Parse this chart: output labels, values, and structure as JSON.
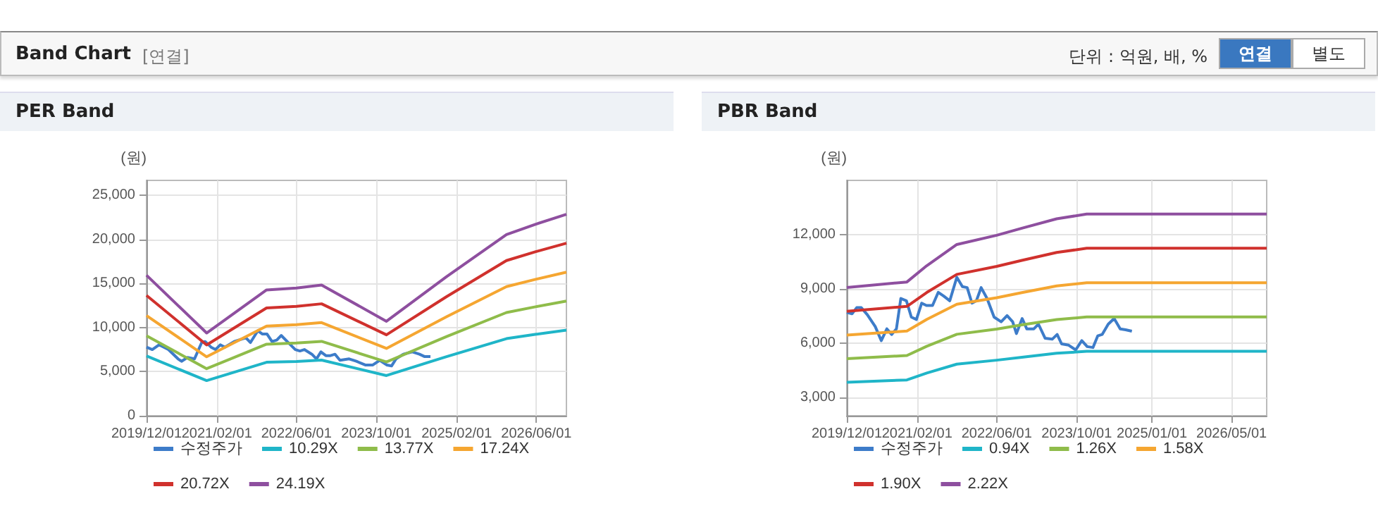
{
  "chart_data": [
    {
      "type": "other",
      "title": "Band Chart",
      "subtitle": "[연결]",
      "annotations": [
        "단위 : 억원, 배, %",
        "연결",
        "별도"
      ]
    },
    {
      "type": "line",
      "title": "PER Band",
      "ylabel": "(원)",
      "xlim": [
        "2019-12-01",
        "2026-12-01"
      ],
      "xticks": [
        {
          "value": "2019-12-01",
          "label": "2019/12/01"
        },
        {
          "value": "2021-02-01",
          "label": "2021/02/01"
        },
        {
          "value": "2022-06-01",
          "label": "2022/06/01"
        },
        {
          "value": "2023-10-01",
          "label": "2023/10/01"
        },
        {
          "value": "2025-02-01",
          "label": "2025/02/01"
        },
        {
          "value": "2026-06-01",
          "label": "2026/06/01"
        }
      ],
      "ylim": [
        0,
        26700
      ],
      "yticks": [
        0,
        {
          "value": 5000,
          "label": "5,000"
        },
        {
          "value": 10000,
          "label": "10,000"
        },
        {
          "value": 15000,
          "label": "15,000"
        },
        {
          "value": 20000,
          "label": "20,000"
        },
        {
          "value": 25000,
          "label": "25,000"
        }
      ],
      "grid": true,
      "legend": "bottom",
      "marker": "none",
      "line_style": "solid",
      "series": [
        {
          "name": "수정주가",
          "color": "#3d7cc9",
          "x": [
            "2019-12-01",
            "2020-01-05",
            "2020-02-15",
            "2020-04-12",
            "2020-06-10",
            "2020-07-01",
            "2020-08-06",
            "2020-09-18",
            "2020-11-01",
            "2020-11-22",
            "2020-12-28",
            "2021-01-24",
            "2021-02-22",
            "2021-03-22",
            "2021-05-18",
            "2021-07-28",
            "2021-08-25",
            "2021-10-09",
            "2021-11-06",
            "2021-12-04",
            "2022-01-03",
            "2022-02-01",
            "2022-02-28",
            "2022-04-12",
            "2022-05-25",
            "2022-06-22",
            "2022-07-19",
            "2022-09-03",
            "2022-10-01",
            "2022-10-28",
            "2022-11-27",
            "2022-12-25",
            "2023-01-22",
            "2023-02-21",
            "2023-04-18",
            "2023-06-01",
            "2023-07-25",
            "2023-09-09",
            "2023-10-21",
            "2023-12-04",
            "2024-01-01",
            "2024-01-28",
            "2024-03-13",
            "2024-05-07",
            "2024-06-19",
            "2024-07-19",
            "2024-08-25"
          ],
          "values": [
            7780,
            7510,
            8050,
            7510,
            6450,
            6180,
            6610,
            6450,
            8310,
            8420,
            7780,
            7510,
            8050,
            7780,
            8420,
            8850,
            8310,
            9650,
            9270,
            9270,
            8420,
            8580,
            9110,
            8310,
            7510,
            7350,
            7510,
            6980,
            6450,
            7250,
            6820,
            6820,
            6980,
            6290,
            6450,
            6180,
            5760,
            5760,
            6290,
            5760,
            5650,
            6450,
            6980,
            7250,
            6980,
            6720,
            6720
          ]
        },
        {
          "name": "10.29X",
          "color": "#1fb5c8",
          "x": [
            "2019-12-01",
            "2020-12-01",
            "2021-12-01",
            "2022-06-01",
            "2022-11-01",
            "2023-12-01",
            "2024-12-01",
            "2025-12-01",
            "2026-06-01",
            "2026-12-01"
          ],
          "values": [
            6780,
            3990,
            6070,
            6160,
            6310,
            4560,
            6710,
            8750,
            9250,
            9720
          ]
        },
        {
          "name": "13.77X",
          "color": "#8fbc4a",
          "x": [
            "2019-12-01",
            "2020-12-01",
            "2021-12-01",
            "2022-06-01",
            "2022-11-01",
            "2023-12-01",
            "2024-12-01",
            "2025-12-01",
            "2026-06-01",
            "2026-12-01"
          ],
          "values": [
            9070,
            5340,
            8120,
            8250,
            8440,
            6100,
            8980,
            11710,
            12380,
            13010
          ]
        },
        {
          "name": "17.24X",
          "color": "#f5a631",
          "x": [
            "2019-12-01",
            "2020-12-01",
            "2021-12-01",
            "2022-06-01",
            "2022-11-01",
            "2023-12-01",
            "2024-12-01",
            "2025-12-01",
            "2026-06-01",
            "2026-12-01"
          ],
          "values": [
            11360,
            6690,
            10170,
            10330,
            10570,
            7640,
            11240,
            14650,
            15500,
            16290
          ]
        },
        {
          "name": "20.72X",
          "color": "#d0312d",
          "x": [
            "2019-12-01",
            "2020-12-01",
            "2021-12-01",
            "2022-06-01",
            "2022-11-01",
            "2023-12-01",
            "2024-12-01",
            "2025-12-01",
            "2026-06-01",
            "2026-12-01"
          ],
          "values": [
            13650,
            8040,
            12230,
            12410,
            12700,
            9180,
            13510,
            17610,
            18630,
            19580
          ]
        },
        {
          "name": "24.19X",
          "color": "#8e4f9f",
          "x": [
            "2019-12-01",
            "2020-12-01",
            "2021-12-01",
            "2022-06-01",
            "2022-11-01",
            "2023-12-01",
            "2024-12-01",
            "2025-12-01",
            "2026-06-01",
            "2026-12-01"
          ],
          "values": [
            15940,
            9390,
            14270,
            14490,
            14830,
            10720,
            15770,
            20560,
            21750,
            22860
          ]
        }
      ]
    },
    {
      "type": "line",
      "title": "PBR Band",
      "ylabel": "(원)",
      "xlim": [
        "2019-12-01",
        "2026-12-01"
      ],
      "xticks": [
        {
          "value": "2019-12-01",
          "label": "2019/12/01"
        },
        {
          "value": "2021-02-01",
          "label": "2021/02/01"
        },
        {
          "value": "2022-06-01",
          "label": "2022/06/01"
        },
        {
          "value": "2023-10-01",
          "label": "2023/10/01"
        },
        {
          "value": "2025-01-01",
          "label": "2025/01/01"
        },
        {
          "value": "2026-05-01",
          "label": "2026/05/01"
        }
      ],
      "ylim": [
        2000,
        15000
      ],
      "yticks": [
        {
          "value": 3000,
          "label": "3,000"
        },
        {
          "value": 6000,
          "label": "6,000"
        },
        {
          "value": 9000,
          "label": "9,000"
        },
        {
          "value": 12000,
          "label": "12,000"
        }
      ],
      "grid": true,
      "legend": "bottom",
      "marker": "none",
      "line_style": "solid",
      "series": [
        {
          "name": "수정주가",
          "color": "#3d7cc9",
          "x": [
            "2019-12-01",
            "2020-01-02",
            "2020-01-30",
            "2020-02-27",
            "2020-04-04",
            "2020-05-22",
            "2020-06-28",
            "2020-08-01",
            "2020-08-30",
            "2020-09-28",
            "2020-10-25",
            "2020-11-28",
            "2020-12-28",
            "2021-01-28",
            "2021-03-01",
            "2021-03-30",
            "2021-05-06",
            "2021-06-10",
            "2021-07-13",
            "2021-08-19",
            "2021-10-01",
            "2021-11-04",
            "2021-12-03",
            "2022-01-01",
            "2022-01-28",
            "2022-02-26",
            "2022-04-03",
            "2022-05-16",
            "2022-06-28",
            "2022-08-03",
            "2022-09-06",
            "2022-09-29",
            "2022-11-03",
            "2022-12-01",
            "2023-01-13",
            "2023-02-10",
            "2023-03-23",
            "2023-05-05",
            "2023-06-04",
            "2023-07-01",
            "2023-08-13",
            "2023-09-25",
            "2023-11-01",
            "2023-12-04",
            "2024-01-08",
            "2024-02-06",
            "2024-03-04",
            "2024-04-10",
            "2024-05-16",
            "2024-06-22",
            "2024-07-25",
            "2024-09-01"
          ],
          "values": [
            7710,
            7630,
            7970,
            7970,
            7580,
            6930,
            6150,
            6800,
            6490,
            6800,
            8480,
            8350,
            7450,
            7320,
            8220,
            8090,
            8090,
            8820,
            8610,
            8350,
            9650,
            9130,
            9080,
            8220,
            8350,
            9080,
            8480,
            7450,
            7190,
            7530,
            7190,
            6540,
            7370,
            6800,
            6800,
            7060,
            6280,
            6230,
            6490,
            5970,
            5900,
            5640,
            6150,
            5820,
            5770,
            6410,
            6490,
            7060,
            7370,
            6800,
            6750,
            6670
          ]
        },
        {
          "name": "0.94X",
          "color": "#1fb5c8",
          "x": [
            "2019-12-01",
            "2020-12-01",
            "2021-04-01",
            "2021-10-01",
            "2022-06-01",
            "2022-11-01",
            "2023-06-01",
            "2023-12-01",
            "2026-12-01"
          ],
          "values": [
            3850,
            3980,
            4360,
            4850,
            5070,
            5230,
            5450,
            5560,
            5560
          ]
        },
        {
          "name": "1.26X",
          "color": "#8fbc4a",
          "x": [
            "2019-12-01",
            "2020-12-01",
            "2021-04-01",
            "2021-10-01",
            "2022-06-01",
            "2022-11-01",
            "2023-06-01",
            "2023-12-01",
            "2026-12-01"
          ],
          "values": [
            5150,
            5330,
            5840,
            6500,
            6790,
            7020,
            7310,
            7460,
            7460
          ]
        },
        {
          "name": "1.58X",
          "color": "#f5a631",
          "x": [
            "2019-12-01",
            "2020-12-01",
            "2021-04-01",
            "2021-10-01",
            "2022-06-01",
            "2022-11-01",
            "2023-06-01",
            "2023-12-01",
            "2026-12-01"
          ],
          "values": [
            6460,
            6680,
            7320,
            8160,
            8520,
            8800,
            9170,
            9350,
            9350
          ]
        },
        {
          "name": "1.90X",
          "color": "#d0312d",
          "x": [
            "2019-12-01",
            "2020-12-01",
            "2021-04-01",
            "2021-10-01",
            "2022-06-01",
            "2022-11-01",
            "2023-06-01",
            "2023-12-01",
            "2026-12-01"
          ],
          "values": [
            7770,
            8040,
            8810,
            9810,
            10250,
            10580,
            11020,
            11250,
            11250
          ]
        },
        {
          "name": "2.22X",
          "color": "#8e4f9f",
          "x": [
            "2019-12-01",
            "2020-12-01",
            "2021-04-01",
            "2021-10-01",
            "2022-06-01",
            "2022-11-01",
            "2023-06-01",
            "2023-12-01",
            "2026-12-01"
          ],
          "values": [
            9080,
            9390,
            10290,
            11460,
            11970,
            12360,
            12880,
            13140,
            13140
          ]
        }
      ]
    }
  ]
}
